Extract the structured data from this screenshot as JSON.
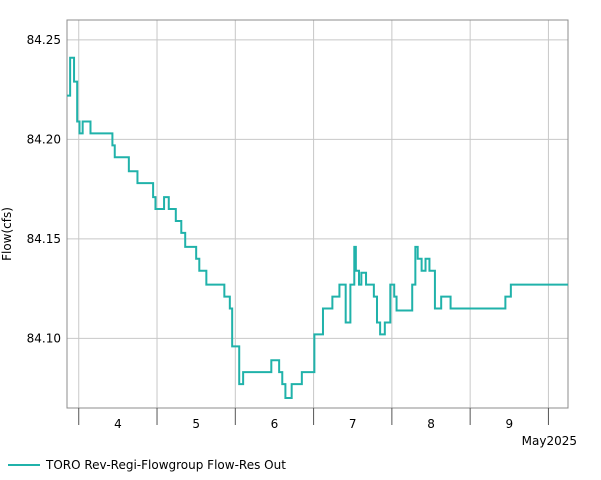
{
  "chart_data": {
    "type": "line",
    "ylabel": "Flow(cfs)",
    "xlabel": "",
    "ylim": [
      84.065,
      84.26
    ],
    "xlim": [
      3.35,
      9.75
    ],
    "y_ticks": [
      84.1,
      84.15,
      84.2,
      84.25
    ],
    "y_tick_labels": [
      "84.10",
      "84.15",
      "84.20",
      "84.25"
    ],
    "x_ticks": [
      4,
      5,
      6,
      7,
      8,
      9
    ],
    "x_tick_labels": [
      "4",
      "5",
      "6",
      "7",
      "8",
      "9"
    ],
    "x_period_label": "May2025",
    "grid": true,
    "legend_position": "bottom-left",
    "series": [
      {
        "name": "TORO Rev-Regi-Flowgroup Flow-Res Out",
        "color": "#20b2aa",
        "step": true,
        "x": [
          3.35,
          3.39,
          3.44,
          3.48,
          3.51,
          3.55,
          3.6,
          3.65,
          3.93,
          3.96,
          3.98,
          4.14,
          4.25,
          4.45,
          4.48,
          4.59,
          4.65,
          4.74,
          4.81,
          4.86,
          4.9,
          5.0,
          5.04,
          5.13,
          5.26,
          5.36,
          5.43,
          5.46,
          5.55,
          5.6,
          5.91,
          5.96,
          6.02,
          6.06,
          6.1,
          6.14,
          6.22,
          6.35,
          6.51,
          6.62,
          6.74,
          6.83,
          6.91,
          6.97,
          7.02,
          7.04,
          7.08,
          7.11,
          7.17,
          7.24,
          7.27,
          7.31,
          7.35,
          7.41,
          7.48,
          7.53,
          7.56,
          7.61,
          7.73,
          7.76,
          7.8,
          7.83,
          7.88,
          7.93,
          7.98,
          8.05,
          8.13,
          8.25,
          8.91,
          8.95,
          9.02,
          9.05,
          9.08,
          9.11,
          9.15,
          9.26,
          9.34,
          9.42,
          9.75
        ],
        "y": [
          84.222,
          84.241,
          84.229,
          84.209,
          84.203,
          84.209,
          84.209,
          84.203,
          84.197,
          84.191,
          84.191,
          84.184,
          84.178,
          84.171,
          84.165,
          84.171,
          84.165,
          84.159,
          84.153,
          84.146,
          84.146,
          84.14,
          84.134,
          84.127,
          84.127,
          84.121,
          84.115,
          84.096,
          84.077,
          84.083,
          84.083,
          84.089,
          84.089,
          84.083,
          84.077,
          84.07,
          84.077,
          84.083,
          84.102,
          84.115,
          84.121,
          84.127,
          84.108,
          84.127,
          84.146,
          84.134,
          84.127,
          84.133,
          84.127,
          84.127,
          84.121,
          84.108,
          84.102,
          84.108,
          84.127,
          84.121,
          84.114,
          84.114,
          84.114,
          84.127,
          84.146,
          84.14,
          84.134,
          84.14,
          84.134,
          84.115,
          84.121,
          84.115,
          84.115,
          84.121,
          84.127,
          84.127,
          84.127,
          84.127,
          84.127,
          84.127,
          84.127,
          84.127,
          84.127
        ]
      }
    ]
  }
}
